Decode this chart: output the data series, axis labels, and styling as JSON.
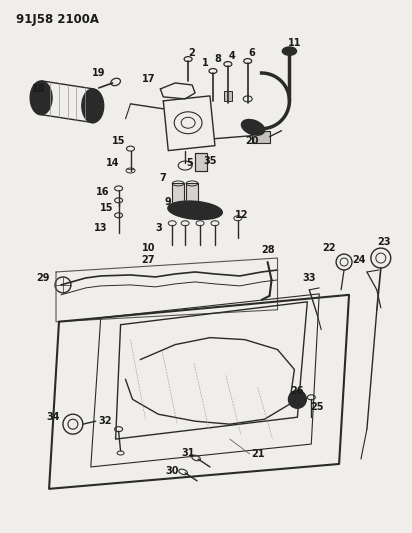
{
  "title": "91J58 2100A",
  "bg_color": "#f0eeeb",
  "fig_width": 4.12,
  "fig_height": 5.33,
  "dpi": 100,
  "line_color": "#2a2a2a",
  "label_color": "#1a1a1a",
  "label_fontsize": 7.0,
  "title_fontsize": 8.5
}
